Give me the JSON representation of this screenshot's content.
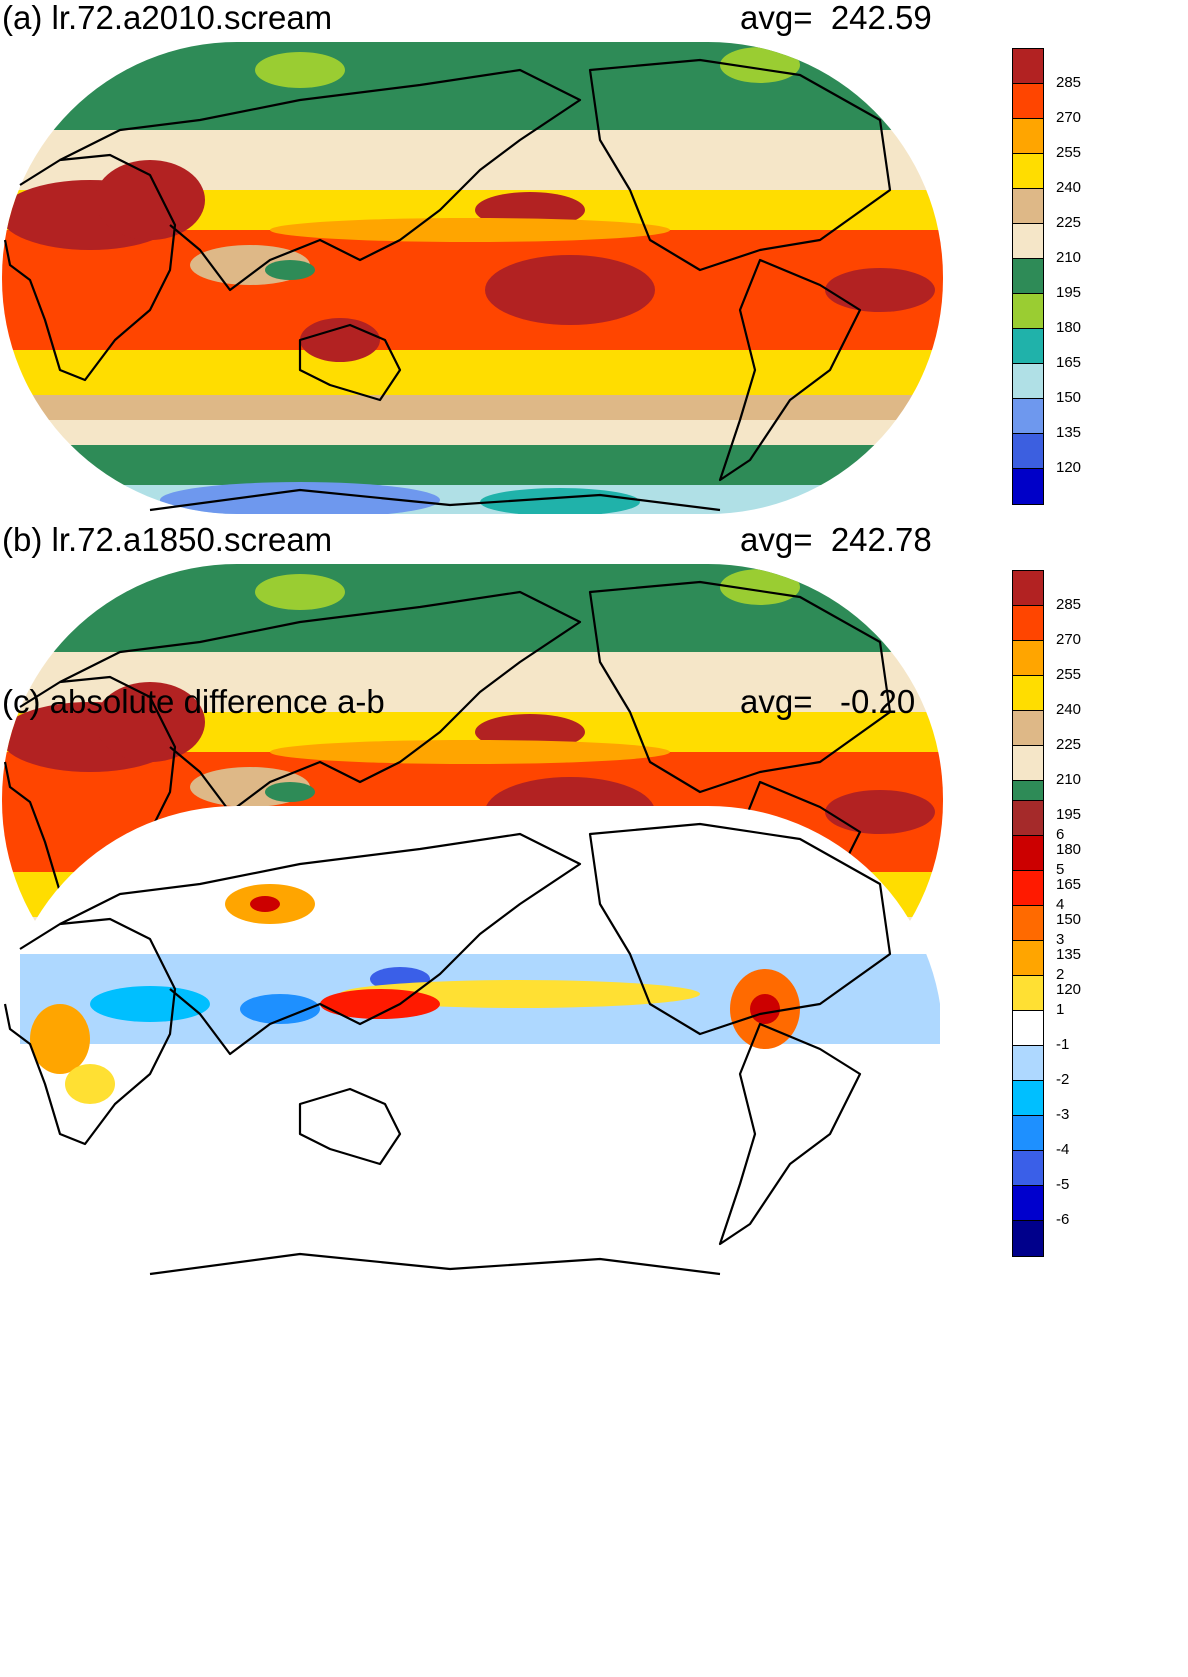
{
  "panels": [
    {
      "id": "a",
      "title": "(a) lr.72.a2010.scream",
      "avg_label": "avg=  242.59",
      "colorbar": {
        "colors": [
          "#0000c8",
          "#3c5fe0",
          "#6e98ee",
          "#b0e0e6",
          "#20b2aa",
          "#9acd32",
          "#2e8b57",
          "#f5e6c8",
          "#deb887",
          "#ffdd00",
          "#ffa500",
          "#ff4500",
          "#b22222"
        ],
        "ticks": [
          "120",
          "135",
          "150",
          "165",
          "180",
          "195",
          "210",
          "225",
          "240",
          "255",
          "270",
          "285"
        ]
      }
    },
    {
      "id": "b",
      "title": "(b) lr.72.a1850.scream",
      "avg_label": "avg=  242.78",
      "colorbar": {
        "colors": [
          "#0000c8",
          "#3c5fe0",
          "#6e98ee",
          "#b0e0e6",
          "#20b2aa",
          "#9acd32",
          "#2e8b57",
          "#f5e6c8",
          "#deb887",
          "#ffdd00",
          "#ffa500",
          "#ff4500",
          "#b22222"
        ],
        "ticks": [
          "120",
          "135",
          "150",
          "165",
          "180",
          "195",
          "210",
          "225",
          "240",
          "255",
          "270",
          "285"
        ]
      }
    },
    {
      "id": "c",
      "title": "(c) absolute difference a-b",
      "avg_label": "avg=   -0.20",
      "colorbar": {
        "colors": [
          "#00008b",
          "#0000cd",
          "#3a5fe8",
          "#1e90ff",
          "#00bfff",
          "#aed8ff",
          "#ffffff",
          "#ffe033",
          "#ffa500",
          "#ff6a00",
          "#ff1a00",
          "#cc0000",
          "#a52a2a"
        ],
        "ticks": [
          "-6",
          "-5",
          "-4",
          "-3",
          "-2",
          "-1",
          "1",
          "2",
          "3",
          "4",
          "5",
          "6"
        ]
      }
    }
  ]
}
